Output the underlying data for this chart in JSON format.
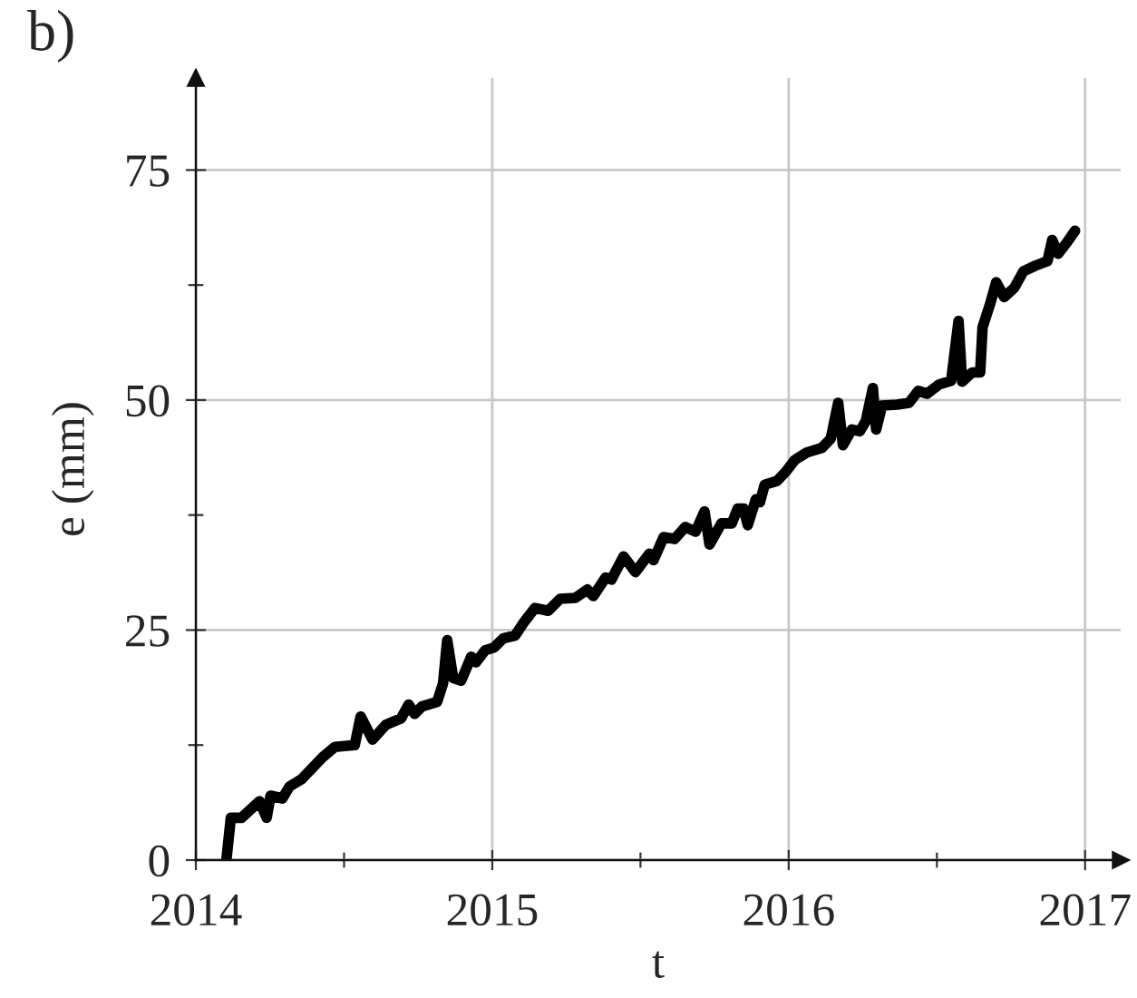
{
  "chart_data": {
    "type": "line",
    "xlabel": "t",
    "ylabel": "e (mm)",
    "annotations": [
      "b)"
    ],
    "x": [
      2014.103,
      2014.118,
      2014.154,
      2014.215,
      2014.239,
      2014.252,
      2014.292,
      2014.316,
      2014.357,
      2014.428,
      2014.469,
      2014.536,
      2014.556,
      2014.596,
      2014.641,
      2014.692,
      2014.718,
      2014.738,
      2014.763,
      2014.814,
      2014.834,
      2014.848,
      2014.868,
      2014.895,
      2014.929,
      2014.945,
      2014.976,
      2015.006,
      2015.037,
      2015.077,
      2015.108,
      2015.144,
      2015.189,
      2015.229,
      2015.28,
      2015.321,
      2015.341,
      2015.382,
      2015.402,
      2015.443,
      2015.483,
      2015.53,
      2015.544,
      2015.578,
      2015.615,
      2015.651,
      2015.686,
      2015.716,
      2015.733,
      2015.773,
      2015.808,
      2015.828,
      2015.848,
      2015.862,
      2015.889,
      2015.903,
      2015.919,
      2015.96,
      2015.99,
      2016.021,
      2016.061,
      2016.112,
      2016.142,
      2016.167,
      2016.183,
      2016.213,
      2016.24,
      2016.26,
      2016.284,
      2016.295,
      2016.315,
      2016.366,
      2016.406,
      2016.437,
      2016.467,
      2016.508,
      2016.548,
      2016.573,
      2016.585,
      2016.619,
      2016.646,
      2016.654,
      2016.68,
      2016.7,
      2016.727,
      2016.761,
      2016.792,
      2016.832,
      2016.873,
      2016.889,
      2016.909,
      2016.938,
      2016.966
    ],
    "values": [
      0,
      4.6,
      4.6,
      6.4,
      4.6,
      7.0,
      6.7,
      8.0,
      8.8,
      11.2,
      12.3,
      12.5,
      15.6,
      13.1,
      14.7,
      15.4,
      16.9,
      15.9,
      16.7,
      17.2,
      19.2,
      23.9,
      19.8,
      19.5,
      22.1,
      21.5,
      22.8,
      23.1,
      24.1,
      24.4,
      25.9,
      27.4,
      27.1,
      28.4,
      28.5,
      29.4,
      28.7,
      30.7,
      30.5,
      33.0,
      31.3,
      33.3,
      32.6,
      35.1,
      34.9,
      36.2,
      35.7,
      37.9,
      34.3,
      36.6,
      36.6,
      38.2,
      38.2,
      36.4,
      39.2,
      38.9,
      40.8,
      41.2,
      42.2,
      43.5,
      44.3,
      44.8,
      45.8,
      49.7,
      45.1,
      46.8,
      46.6,
      47.7,
      51.3,
      46.8,
      49.4,
      49.5,
      49.7,
      51.0,
      50.7,
      51.7,
      52.1,
      58.6,
      52.0,
      53.0,
      53.0,
      57.9,
      60.5,
      62.8,
      61.2,
      62.2,
      64.0,
      64.6,
      65.1,
      67.4,
      65.9,
      67.1,
      68.4
    ],
    "color": "#000000",
    "line_style": "solid",
    "xlim": [
      2014,
      2017.12
    ],
    "ylim": [
      0,
      85
    ],
    "xticks": [
      2014,
      {
        "value": 2014.5,
        "label": null
      },
      2015,
      {
        "value": 2015.5,
        "label": null
      },
      2016,
      {
        "value": 2016.5,
        "label": null
      },
      2017
    ],
    "yticks": [
      0,
      {
        "value": 12.5,
        "label": null
      },
      25,
      {
        "value": 37.5,
        "label": null
      },
      50,
      {
        "value": 62.5,
        "label": null
      },
      75
    ],
    "grid": true
  }
}
